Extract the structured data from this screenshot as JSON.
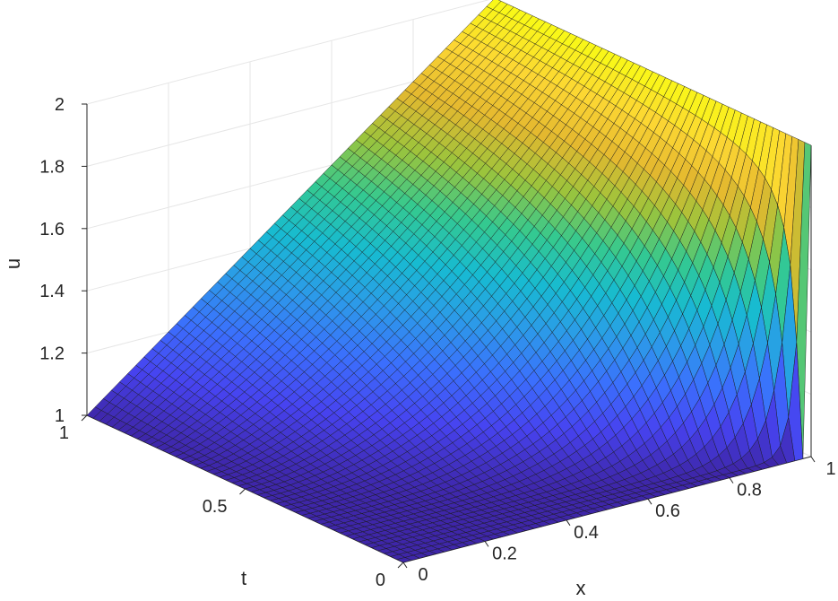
{
  "chart_data": {
    "type": "surface",
    "title": "",
    "xlabel": "x",
    "ylabel": "t",
    "zlabel": "u",
    "xlim": [
      0,
      1
    ],
    "ylim": [
      0,
      1
    ],
    "zlim": [
      1,
      2
    ],
    "x_ticks": [
      0,
      0.2,
      0.4,
      0.6,
      0.8,
      1
    ],
    "x_tick_labels": [
      "0",
      "0.2",
      "0.4",
      "0.6",
      "0.8",
      "1"
    ],
    "t_ticks": [
      0,
      0.5,
      1
    ],
    "t_tick_labels": [
      "0",
      "0.5",
      "1"
    ],
    "u_ticks": [
      1,
      1.2,
      1.4,
      1.6,
      1.8,
      2
    ],
    "u_tick_labels": [
      "1",
      "1.2",
      "1.4",
      "1.6",
      "1.8",
      "2"
    ],
    "grid": true,
    "colormap": "parula",
    "colormap_colors": [
      "#3e26a8",
      "#4743f0",
      "#3b6ffd",
      "#2c9ae9",
      "#17bbd1",
      "#34c990",
      "#9bc43c",
      "#e4b82f",
      "#fcd633",
      "#f9fb15"
    ],
    "surface": {
      "description": "u(x,t) = 1 + x^(1/t) for x in [0,1], t in (0,1]",
      "exponent_rule": "inverse_t",
      "x_samples": 50,
      "t_samples": 50,
      "boundary_x1_t0": 2,
      "boundary_t1": "1 + x"
    }
  }
}
